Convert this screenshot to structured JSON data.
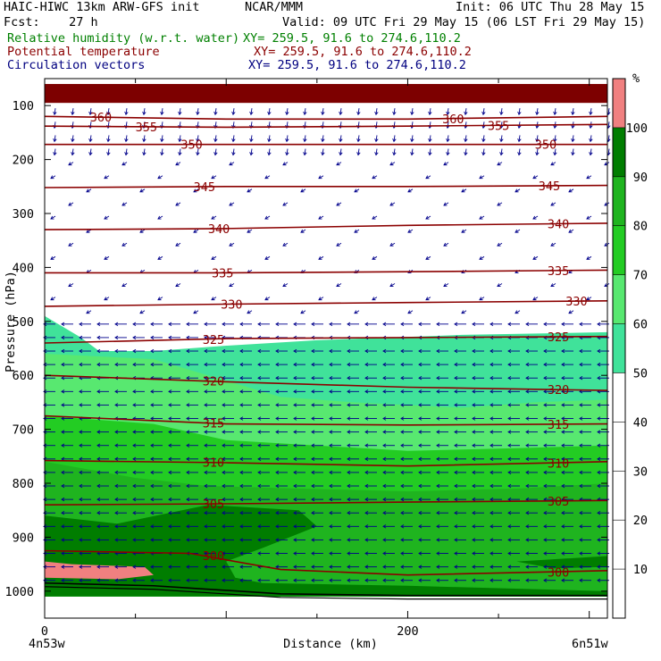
{
  "header": {
    "line1_left": "HAIC-HIWC 13km ARW-GFS init",
    "line1_center": "NCAR/MMM",
    "line1_right": "Init: 06 UTC Thu 28 May 15",
    "fcst": "Fcst:    27 h",
    "valid": "Valid: 09 UTC Fri 29 May 15 (06 LST Fri 29 May 15)",
    "fields": [
      {
        "label": "Relative humidity (w.r.t. water)",
        "xy": "XY= 259.5, 91.6 to 274.6,110.2",
        "color": "#008000"
      },
      {
        "label": "Potential temperature",
        "xy": "XY= 259.5, 91.6 to 274.6,110.2",
        "color": "#8b0000"
      },
      {
        "label": "Circulation vectors",
        "xy": "XY= 259.5, 91.6 to 274.6,110.2",
        "color": "#000080"
      }
    ]
  },
  "chart_data": {
    "type": "heatmap",
    "title": "",
    "xlabel": "Distance (km)",
    "ylabel": "Pressure (hPa)",
    "x_ticks": [
      "0",
      "200"
    ],
    "xlim": [
      0,
      310
    ],
    "x_endpoints": {
      "left": "4n53w",
      "right": "6n51w"
    },
    "y_ticks": [
      100,
      200,
      300,
      400,
      500,
      600,
      700,
      800,
      900,
      1000
    ],
    "ylim": [
      50,
      1050
    ],
    "y_scale": "linear",
    "colorbar": {
      "unit": "%",
      "labels": [
        10,
        20,
        30,
        40,
        50,
        60,
        70,
        80,
        90,
        100
      ],
      "bands": [
        {
          "from": 0,
          "to": 50,
          "color": "#ffffff"
        },
        {
          "from": 50,
          "to": 60,
          "color": "#40e29a"
        },
        {
          "from": 60,
          "to": 70,
          "color": "#58e870"
        },
        {
          "from": 70,
          "to": 80,
          "color": "#23cc23"
        },
        {
          "from": 80,
          "to": 90,
          "color": "#1fb41f"
        },
        {
          "from": 90,
          "to": 100,
          "color": "#007d00"
        },
        {
          "from": 100,
          "to": 110,
          "color": "#f08080"
        }
      ]
    },
    "rh_regions": [
      {
        "rh": 55,
        "outline": [
          [
            0,
            490
          ],
          [
            20,
            530
          ],
          [
            30,
            555
          ],
          [
            60,
            555
          ],
          [
            100,
            545
          ],
          [
            150,
            535
          ],
          [
            230,
            525
          ],
          [
            310,
            520
          ],
          [
            310,
            1010
          ],
          [
            0,
            1010
          ]
        ]
      },
      {
        "rh": 65,
        "outline": [
          [
            0,
            560
          ],
          [
            60,
            570
          ],
          [
            90,
            600
          ],
          [
            130,
            640
          ],
          [
            170,
            650
          ],
          [
            230,
            660
          ],
          [
            270,
            650
          ],
          [
            310,
            645
          ],
          [
            310,
            1010
          ],
          [
            0,
            1010
          ]
        ]
      },
      {
        "rh": 75,
        "outline": [
          [
            0,
            675
          ],
          [
            60,
            690
          ],
          [
            100,
            720
          ],
          [
            150,
            730
          ],
          [
            200,
            740
          ],
          [
            260,
            735
          ],
          [
            310,
            730
          ],
          [
            310,
            1010
          ],
          [
            0,
            1010
          ]
        ]
      },
      {
        "rh": 85,
        "outline": [
          [
            0,
            760
          ],
          [
            50,
            790
          ],
          [
            90,
            805
          ],
          [
            140,
            810
          ],
          [
            200,
            815
          ],
          [
            260,
            810
          ],
          [
            310,
            800
          ],
          [
            310,
            1010
          ],
          [
            0,
            1010
          ]
        ]
      },
      {
        "rh": 95,
        "outline": [
          [
            0,
            860
          ],
          [
            40,
            875
          ],
          [
            90,
            840
          ],
          [
            140,
            850
          ],
          [
            150,
            880
          ],
          [
            120,
            920
          ],
          [
            100,
            945
          ],
          [
            105,
            975
          ],
          [
            120,
            985
          ],
          [
            200,
            990
          ],
          [
            310,
            1000
          ],
          [
            310,
            1010
          ],
          [
            0,
            1010
          ]
        ]
      },
      {
        "rh": 85,
        "outline": [
          [
            230,
            990
          ],
          [
            260,
            970
          ],
          [
            310,
            960
          ],
          [
            310,
            1000
          ]
        ]
      },
      {
        "rh": 95,
        "outline": [
          [
            260,
            945
          ],
          [
            310,
            935
          ],
          [
            310,
            955
          ],
          [
            280,
            958
          ]
        ]
      },
      {
        "rh": 105,
        "outline": [
          [
            0,
            945
          ],
          [
            15,
            950
          ],
          [
            55,
            955
          ],
          [
            60,
            970
          ],
          [
            40,
            978
          ],
          [
            0,
            975
          ]
        ]
      }
    ],
    "stratosphere_band": {
      "p_top": 60,
      "p_bottom": 95,
      "color": "#7d0000"
    },
    "isentropes": [
      {
        "theta": 360,
        "points": [
          [
            0,
            120
          ],
          [
            100,
            125
          ],
          [
            200,
            125
          ],
          [
            310,
            120
          ]
        ],
        "labels_x": [
          25,
          219
        ]
      },
      {
        "theta": 355,
        "points": [
          [
            0,
            138
          ],
          [
            100,
            140
          ],
          [
            200,
            138
          ],
          [
            310,
            135
          ]
        ],
        "labels_x": [
          50,
          244
        ]
      },
      {
        "theta": 350,
        "points": [
          [
            0,
            172
          ],
          [
            100,
            172
          ],
          [
            200,
            172
          ],
          [
            310,
            172
          ]
        ],
        "labels_x": [
          75,
          270
        ]
      },
      {
        "theta": 345,
        "points": [
          [
            0,
            252
          ],
          [
            100,
            250
          ],
          [
            200,
            250
          ],
          [
            310,
            248
          ]
        ],
        "labels_x": [
          82,
          272
        ]
      },
      {
        "theta": 340,
        "points": [
          [
            0,
            330
          ],
          [
            100,
            328
          ],
          [
            200,
            322
          ],
          [
            310,
            318
          ]
        ],
        "labels_x": [
          90,
          277
        ]
      },
      {
        "theta": 335,
        "points": [
          [
            0,
            410
          ],
          [
            100,
            410
          ],
          [
            200,
            408
          ],
          [
            310,
            405
          ]
        ],
        "labels_x": [
          92,
          277
        ]
      },
      {
        "theta": 330,
        "points": [
          [
            0,
            472
          ],
          [
            100,
            468
          ],
          [
            200,
            465
          ],
          [
            310,
            462
          ]
        ],
        "labels_x": [
          97,
          287
        ]
      },
      {
        "theta": 325,
        "points": [
          [
            0,
            540
          ],
          [
            100,
            532
          ],
          [
            200,
            530
          ],
          [
            310,
            528
          ]
        ],
        "labels_x": [
          87,
          277
        ]
      },
      {
        "theta": 320,
        "points": [
          [
            0,
            600
          ],
          [
            100,
            612
          ],
          [
            200,
            622
          ],
          [
            310,
            628
          ]
        ],
        "labels_x": [
          87,
          277
        ]
      },
      {
        "theta": 315,
        "points": [
          [
            0,
            675
          ],
          [
            100,
            690
          ],
          [
            200,
            692
          ],
          [
            310,
            690
          ]
        ],
        "labels_x": [
          87,
          277
        ]
      },
      {
        "theta": 310,
        "points": [
          [
            0,
            758
          ],
          [
            100,
            762
          ],
          [
            200,
            768
          ],
          [
            310,
            760
          ]
        ],
        "labels_x": [
          87,
          277
        ]
      },
      {
        "theta": 305,
        "points": [
          [
            0,
            840
          ],
          [
            100,
            838
          ],
          [
            200,
            835
          ],
          [
            310,
            832
          ]
        ],
        "labels_x": [
          87,
          277
        ]
      },
      {
        "theta": 300,
        "points": [
          [
            0,
            925
          ],
          [
            80,
            930
          ],
          [
            130,
            960
          ],
          [
            200,
            970
          ],
          [
            310,
            962
          ]
        ],
        "labels_x": [
          87,
          277
        ]
      }
    ],
    "wind_vectors": {
      "upper_200": "short mostly downward arrows",
      "mid_200_500": "sparse short arrows pointing left and down",
      "lower_500_1000": "uniform westward arrows"
    },
    "grid": false,
    "legend": "right colorbar"
  }
}
